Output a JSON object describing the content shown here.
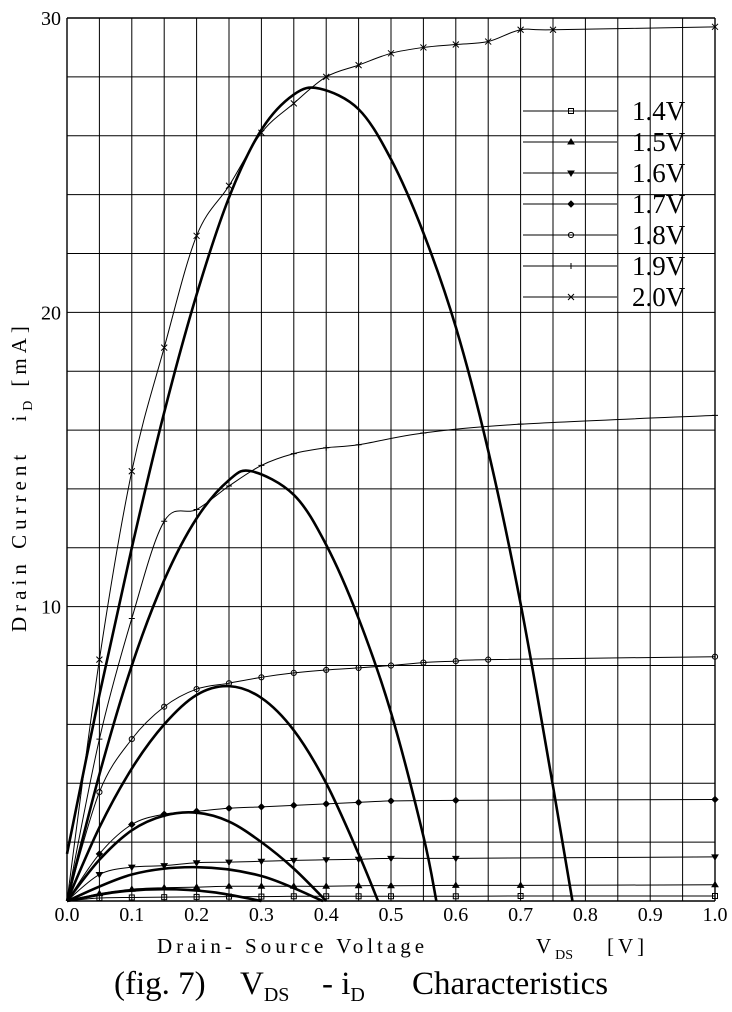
{
  "chart_data": {
    "type": "line",
    "caption": {
      "prefix": "(fig. 7)",
      "v": "V",
      "v_sub": "DS",
      "dash": "- i",
      "i_sub": "D",
      "suffix": "Characteristics"
    },
    "xlabel": {
      "text": "Drain- Source Voltage",
      "sym": "V",
      "sub": "DS",
      "unit": "[V]"
    },
    "ylabel": {
      "text": "Drain Current",
      "sym": "i",
      "sub": "D",
      "unit": "[mA]"
    },
    "xlim": [
      0,
      1.0
    ],
    "ylim": [
      0,
      30
    ],
    "x_ticks": [
      {
        "value": 0.0,
        "label": "0.0"
      },
      {
        "value": 0.1,
        "label": "0.1"
      },
      {
        "value": 0.2,
        "label": "0.2"
      },
      {
        "value": 0.3,
        "label": "0.3"
      },
      {
        "value": 0.4,
        "label": "0.4"
      },
      {
        "value": 0.5,
        "label": "0.5"
      },
      {
        "value": 0.6,
        "label": "0.6"
      },
      {
        "value": 0.7,
        "label": "0.7"
      },
      {
        "value": 0.8,
        "label": "0.8"
      },
      {
        "value": 0.9,
        "label": "0.9"
      },
      {
        "value": 1.0,
        "label": "1.0"
      }
    ],
    "y_ticks": [
      {
        "value": 0,
        "label": ""
      },
      {
        "value": 10,
        "label": "10"
      },
      {
        "value": 20,
        "label": "20"
      },
      {
        "value": 30,
        "label": "30"
      }
    ],
    "grid": true,
    "legend_position": "top-right",
    "series": [
      {
        "name": "1.4V",
        "marker": "square",
        "x": [
          0,
          0.05,
          0.1,
          0.15,
          0.2,
          0.25,
          0.3,
          0.35,
          0.4,
          0.45,
          0.5,
          0.6,
          0.7,
          1.0
        ],
        "y": [
          0,
          0.1,
          0.12,
          0.13,
          0.14,
          0.15,
          0.15,
          0.16,
          0.16,
          0.16,
          0.16,
          0.16,
          0.17,
          0.17
        ]
      },
      {
        "name": "1.5V",
        "marker": "triangle-up",
        "x": [
          0,
          0.05,
          0.1,
          0.15,
          0.2,
          0.25,
          0.3,
          0.35,
          0.4,
          0.45,
          0.5,
          0.6,
          0.7,
          1.0
        ],
        "y": [
          0,
          0.25,
          0.4,
          0.45,
          0.47,
          0.5,
          0.5,
          0.5,
          0.5,
          0.52,
          0.52,
          0.53,
          0.53,
          0.55
        ]
      },
      {
        "name": "1.6V",
        "marker": "triangle-down",
        "x": [
          0,
          0.05,
          0.1,
          0.15,
          0.2,
          0.25,
          0.3,
          0.35,
          0.4,
          0.45,
          0.5,
          0.6,
          1.0
        ],
        "y": [
          0,
          0.9,
          1.15,
          1.2,
          1.3,
          1.32,
          1.35,
          1.38,
          1.4,
          1.42,
          1.45,
          1.45,
          1.5
        ]
      },
      {
        "name": "1.7V",
        "marker": "diamond",
        "x": [
          0,
          0.05,
          0.1,
          0.15,
          0.2,
          0.25,
          0.3,
          0.35,
          0.4,
          0.45,
          0.5,
          0.6,
          1.0
        ],
        "y": [
          0,
          1.6,
          2.6,
          2.95,
          3.05,
          3.15,
          3.2,
          3.25,
          3.3,
          3.35,
          3.4,
          3.42,
          3.45
        ]
      },
      {
        "name": "1.8V",
        "marker": "circle",
        "x": [
          0,
          0.05,
          0.1,
          0.15,
          0.2,
          0.25,
          0.3,
          0.35,
          0.4,
          0.45,
          0.5,
          0.55,
          0.6,
          0.65,
          1.0
        ],
        "y": [
          0,
          3.7,
          5.5,
          6.6,
          7.2,
          7.4,
          7.6,
          7.75,
          7.85,
          7.92,
          8.0,
          8.1,
          8.15,
          8.2,
          8.3
        ]
      },
      {
        "name": "1.9V",
        "marker": "plus",
        "x": [
          0,
          0.05,
          0.1,
          0.15,
          0.2,
          0.25,
          0.3,
          0.35,
          0.4,
          0.45,
          0.55,
          0.7,
          1.0
        ],
        "y": [
          0,
          5.5,
          9.6,
          12.9,
          13.3,
          14.1,
          14.8,
          15.2,
          15.4,
          15.5,
          15.9,
          16.2,
          16.5
        ]
      },
      {
        "name": "2.0V",
        "marker": "cross",
        "x": [
          0,
          0.05,
          0.1,
          0.15,
          0.2,
          0.25,
          0.3,
          0.35,
          0.4,
          0.45,
          0.5,
          0.55,
          0.6,
          0.65,
          0.7,
          0.75,
          1.0
        ],
        "y": [
          0,
          8.2,
          14.6,
          18.8,
          22.6,
          24.3,
          26.1,
          27.1,
          28.0,
          28.4,
          28.8,
          29.0,
          29.1,
          29.2,
          29.6,
          29.6,
          29.7
        ]
      }
    ],
    "parabolas": [
      {
        "x": [
          0,
          0.075,
          0.15,
          0.225,
          0.3
        ],
        "y": [
          0,
          0.3,
          0.4,
          0.3,
          0
        ]
      },
      {
        "x": [
          0,
          0.1,
          0.2,
          0.3,
          0.395
        ],
        "y": [
          0,
          0.9,
          1.15,
          0.85,
          0
        ]
      },
      {
        "x": [
          0,
          0.05,
          0.1,
          0.15,
          0.2,
          0.25,
          0.3,
          0.35,
          0.4
        ],
        "y": [
          0,
          1.4,
          2.4,
          2.9,
          3.0,
          2.7,
          2.0,
          1.1,
          0
        ]
      },
      {
        "x": [
          0,
          0.05,
          0.1,
          0.15,
          0.2,
          0.25,
          0.3,
          0.35,
          0.4,
          0.45,
          0.48
        ],
        "y": [
          0,
          2.5,
          4.5,
          6.0,
          7.0,
          7.3,
          6.9,
          5.8,
          4.0,
          1.6,
          0
        ]
      },
      {
        "x": [
          0,
          0.05,
          0.1,
          0.15,
          0.2,
          0.25,
          0.285,
          0.35,
          0.4,
          0.45,
          0.5,
          0.55,
          0.57
        ],
        "y": [
          0,
          4.3,
          8.0,
          10.9,
          13.0,
          14.3,
          14.6,
          13.8,
          12.1,
          9.6,
          6.4,
          2.2,
          0
        ]
      },
      {
        "x": [
          0,
          0.05,
          0.1,
          0.15,
          0.2,
          0.25,
          0.3,
          0.35,
          0.39,
          0.45,
          0.5,
          0.55,
          0.6,
          0.65,
          0.7,
          0.75,
          0.78
        ],
        "y": [
          1.6,
          7.0,
          12.0,
          16.6,
          20.6,
          23.9,
          26.2,
          27.4,
          27.6,
          26.9,
          25.2,
          22.7,
          19.5,
          15.3,
          10.1,
          3.9,
          0
        ]
      }
    ]
  }
}
